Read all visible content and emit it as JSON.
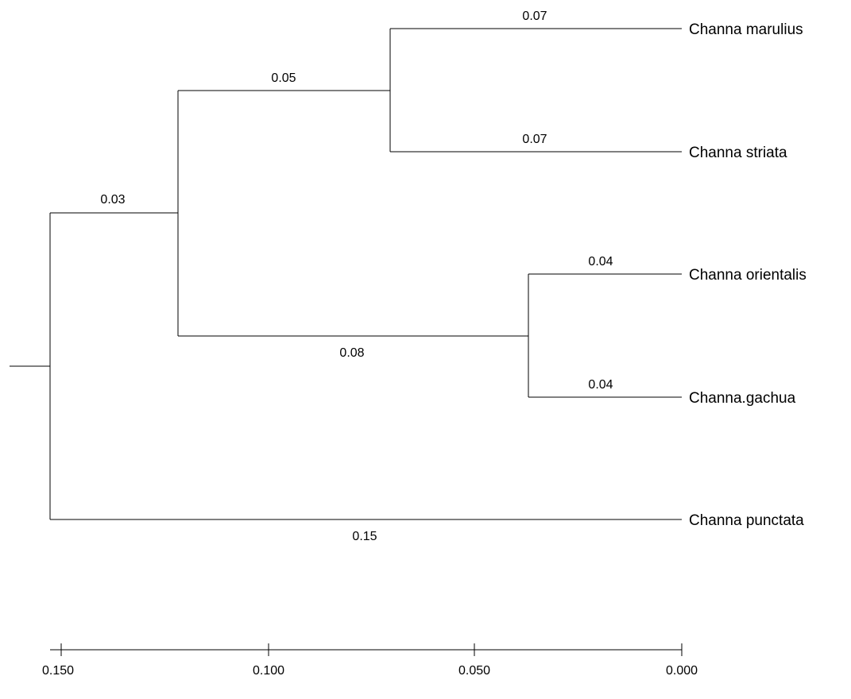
{
  "tree": {
    "taxa": {
      "marulius": "Channa marulius",
      "striata": "Channa striata",
      "orientalis": "Channa orientalis",
      "gachua": "Channa.gachua",
      "punctata": "Channa punctata"
    },
    "branch_lengths": {
      "root_to_inner": "0.03",
      "inner_to_marulius_striata": "0.05",
      "marulius": "0.07",
      "striata": "0.07",
      "inner_to_orientalis_gachua": "0.08",
      "orientalis": "0.04",
      "gachua": "0.04",
      "punctata": "0.15"
    }
  },
  "scale_axis": {
    "ticks": [
      "0.150",
      "0.100",
      "0.050",
      "0.000"
    ]
  }
}
